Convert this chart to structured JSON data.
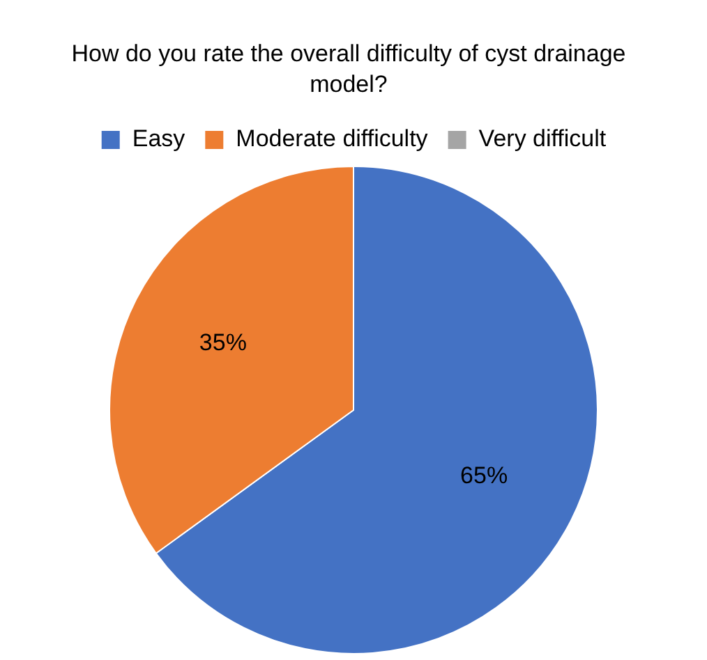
{
  "chart_data": {
    "type": "pie",
    "title": "How do you rate the overall difficulty of cyst drainage model?",
    "categories": [
      "Easy",
      "Moderate difficulty",
      "Very difficult"
    ],
    "values": [
      65,
      35,
      0
    ],
    "colors": [
      "#4472c4",
      "#ed7d31",
      "#a5a5a5"
    ],
    "value_labels": [
      "65%",
      "35%",
      null
    ],
    "legend": "top"
  }
}
